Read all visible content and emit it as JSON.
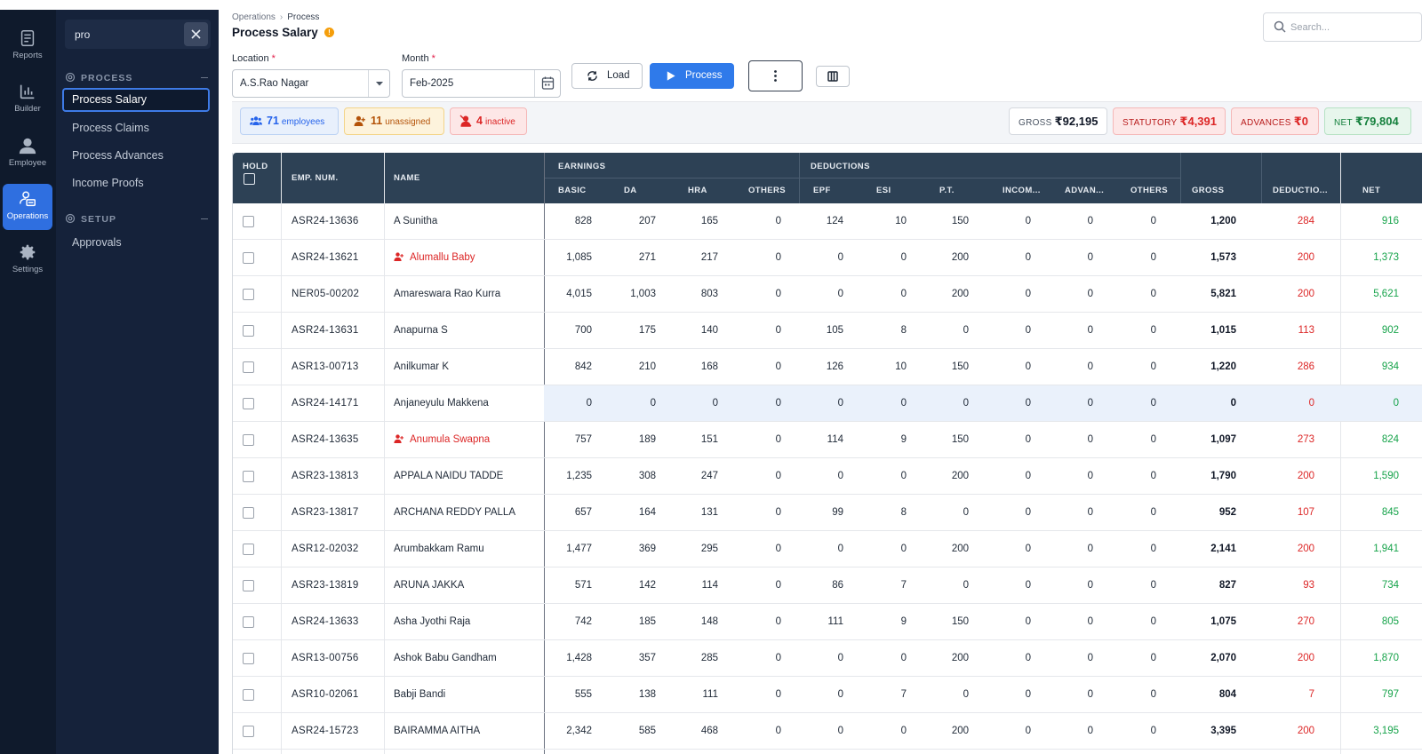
{
  "rail": [
    {
      "label": "Reports",
      "icon": "reports-icon",
      "active": false
    },
    {
      "label": "Builder",
      "icon": "bar-chart-icon",
      "active": false
    },
    {
      "label": "Employee",
      "icon": "person-icon",
      "active": false
    },
    {
      "label": "Operations",
      "icon": "operations-icon",
      "active": true
    },
    {
      "label": "Settings",
      "icon": "gear-icon",
      "active": false
    }
  ],
  "side": {
    "search_value": "pro",
    "sections": [
      {
        "title": "PROCESS",
        "items": [
          "Process Salary",
          "Process Claims",
          "Process Advances",
          "Income Proofs"
        ]
      },
      {
        "title": "SETUP",
        "items": [
          "Approvals"
        ]
      }
    ],
    "active_item": "Process Salary"
  },
  "breadcrumb": {
    "parent": "Operations",
    "current": "Process"
  },
  "page_title": "Process Salary",
  "info_glyph": "!",
  "search": {
    "placeholder": "Search..."
  },
  "filters": {
    "location_label": "Location",
    "location_value": "A.S.Rao Nagar",
    "month_label": "Month",
    "month_value": "Feb-2025",
    "required_mark": "*"
  },
  "buttons": {
    "load": "Load",
    "process": "Process"
  },
  "chips": {
    "employees": {
      "count": "71",
      "label": "employees"
    },
    "unassigned": {
      "count": "11",
      "label": "unassigned"
    },
    "inactive": {
      "count": "4",
      "label": "inactive"
    }
  },
  "totals": {
    "gross": {
      "label": "GROSS",
      "value": "₹92,195"
    },
    "statutory": {
      "label": "STATUTORY",
      "value": "₹4,391"
    },
    "advances": {
      "label": "ADVANCES",
      "value": "₹0"
    },
    "net": {
      "label": "NET",
      "value": "₹79,804"
    }
  },
  "colors": {
    "accent": "#2f7aea",
    "rail_bg": "#0f1a2c",
    "side_bg": "#15223a",
    "table_header": "#2d4155",
    "deduction": "#dc2626",
    "net": "#16a34a"
  },
  "table": {
    "headers": {
      "hold": "HOLD",
      "emp_num": "EMP. NUM.",
      "name": "NAME",
      "earnings": "EARNINGS",
      "deductions": "DEDUCTIONS",
      "basic": "BASIC",
      "da": "DA",
      "hra": "HRA",
      "others_e": "OTHERS",
      "epf": "EPF",
      "esi": "ESI",
      "pt": "P.T.",
      "income": "INCOM...",
      "advances": "ADVAN...",
      "others_d": "OTHERS",
      "gross": "GROSS",
      "deductions_total": "DEDUCTIO...",
      "net": "NET"
    },
    "rows": [
      {
        "emp": "ASR24-13636",
        "name": "A Sunitha",
        "unassigned": false,
        "basic": "828",
        "da": "207",
        "hra": "165",
        "oth_e": "0",
        "epf": "124",
        "esi": "10",
        "pt": "150",
        "inc": "0",
        "adv": "0",
        "oth_d": "0",
        "gross": "1,200",
        "ded": "284",
        "net": "916"
      },
      {
        "emp": "ASR24-13621",
        "name": "Alumallu Baby",
        "unassigned": true,
        "basic": "1,085",
        "da": "271",
        "hra": "217",
        "oth_e": "0",
        "epf": "0",
        "esi": "0",
        "pt": "200",
        "inc": "0",
        "adv": "0",
        "oth_d": "0",
        "gross": "1,573",
        "ded": "200",
        "net": "1,373"
      },
      {
        "emp": "NER05-00202",
        "name": "Amareswara Rao Kurra",
        "unassigned": false,
        "basic": "4,015",
        "da": "1,003",
        "hra": "803",
        "oth_e": "0",
        "epf": "0",
        "esi": "0",
        "pt": "200",
        "inc": "0",
        "adv": "0",
        "oth_d": "0",
        "gross": "5,821",
        "ded": "200",
        "net": "5,621"
      },
      {
        "emp": "ASR24-13631",
        "name": "Anapurna S",
        "unassigned": false,
        "basic": "700",
        "da": "175",
        "hra": "140",
        "oth_e": "0",
        "epf": "105",
        "esi": "8",
        "pt": "0",
        "inc": "0",
        "adv": "0",
        "oth_d": "0",
        "gross": "1,015",
        "ded": "113",
        "net": "902"
      },
      {
        "emp": "ASR13-00713",
        "name": "Anilkumar K",
        "unassigned": false,
        "basic": "842",
        "da": "210",
        "hra": "168",
        "oth_e": "0",
        "epf": "126",
        "esi": "10",
        "pt": "150",
        "inc": "0",
        "adv": "0",
        "oth_d": "0",
        "gross": "1,220",
        "ded": "286",
        "net": "934"
      },
      {
        "emp": "ASR24-14171",
        "name": "Anjaneyulu Makkena",
        "unassigned": false,
        "highlight": true,
        "basic": "0",
        "da": "0",
        "hra": "0",
        "oth_e": "0",
        "epf": "0",
        "esi": "0",
        "pt": "0",
        "inc": "0",
        "adv": "0",
        "oth_d": "0",
        "gross": "0",
        "ded": "0",
        "net": "0"
      },
      {
        "emp": "ASR24-13635",
        "name": "Anumula Swapna",
        "unassigned": true,
        "basic": "757",
        "da": "189",
        "hra": "151",
        "oth_e": "0",
        "epf": "114",
        "esi": "9",
        "pt": "150",
        "inc": "0",
        "adv": "0",
        "oth_d": "0",
        "gross": "1,097",
        "ded": "273",
        "net": "824"
      },
      {
        "emp": "ASR23-13813",
        "name": "APPALA NAIDU TADDE",
        "unassigned": false,
        "basic": "1,235",
        "da": "308",
        "hra": "247",
        "oth_e": "0",
        "epf": "0",
        "esi": "0",
        "pt": "200",
        "inc": "0",
        "adv": "0",
        "oth_d": "0",
        "gross": "1,790",
        "ded": "200",
        "net": "1,590"
      },
      {
        "emp": "ASR23-13817",
        "name": "ARCHANA REDDY PALLA",
        "unassigned": false,
        "basic": "657",
        "da": "164",
        "hra": "131",
        "oth_e": "0",
        "epf": "99",
        "esi": "8",
        "pt": "0",
        "inc": "0",
        "adv": "0",
        "oth_d": "0",
        "gross": "952",
        "ded": "107",
        "net": "845"
      },
      {
        "emp": "ASR12-02032",
        "name": "Arumbakkam Ramu",
        "unassigned": false,
        "basic": "1,477",
        "da": "369",
        "hra": "295",
        "oth_e": "0",
        "epf": "0",
        "esi": "0",
        "pt": "200",
        "inc": "0",
        "adv": "0",
        "oth_d": "0",
        "gross": "2,141",
        "ded": "200",
        "net": "1,941"
      },
      {
        "emp": "ASR23-13819",
        "name": "ARUNA JAKKA",
        "unassigned": false,
        "basic": "571",
        "da": "142",
        "hra": "114",
        "oth_e": "0",
        "epf": "86",
        "esi": "7",
        "pt": "0",
        "inc": "0",
        "adv": "0",
        "oth_d": "0",
        "gross": "827",
        "ded": "93",
        "net": "734"
      },
      {
        "emp": "ASR24-13633",
        "name": "Asha Jyothi Raja",
        "unassigned": false,
        "basic": "742",
        "da": "185",
        "hra": "148",
        "oth_e": "0",
        "epf": "111",
        "esi": "9",
        "pt": "150",
        "inc": "0",
        "adv": "0",
        "oth_d": "0",
        "gross": "1,075",
        "ded": "270",
        "net": "805"
      },
      {
        "emp": "ASR13-00756",
        "name": "Ashok Babu Gandham",
        "unassigned": false,
        "basic": "1,428",
        "da": "357",
        "hra": "285",
        "oth_e": "0",
        "epf": "0",
        "esi": "0",
        "pt": "200",
        "inc": "0",
        "adv": "0",
        "oth_d": "0",
        "gross": "2,070",
        "ded": "200",
        "net": "1,870"
      },
      {
        "emp": "ASR10-02061",
        "name": "Babji Bandi",
        "unassigned": false,
        "basic": "555",
        "da": "138",
        "hra": "111",
        "oth_e": "0",
        "epf": "0",
        "esi": "7",
        "pt": "0",
        "inc": "0",
        "adv": "0",
        "oth_d": "0",
        "gross": "804",
        "ded": "7",
        "net": "797"
      },
      {
        "emp": "ASR24-15723",
        "name": "BAIRAMMA AITHA",
        "unassigned": false,
        "basic": "2,342",
        "da": "585",
        "hra": "468",
        "oth_e": "0",
        "epf": "0",
        "esi": "0",
        "pt": "200",
        "inc": "0",
        "adv": "0",
        "oth_d": "0",
        "gross": "3,395",
        "ded": "200",
        "net": "3,195"
      }
    ]
  }
}
